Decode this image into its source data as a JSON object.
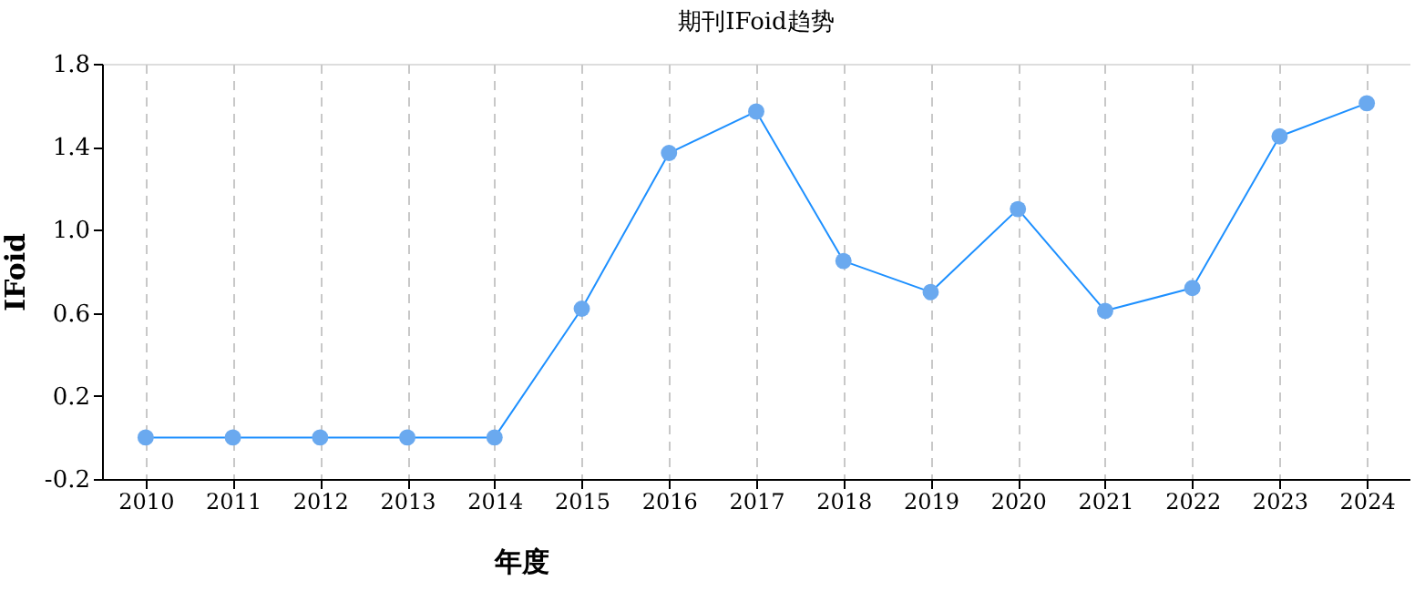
{
  "chart_data": {
    "type": "line",
    "title": "期刊IFoid趋势",
    "xlabel": "年度",
    "ylabel": "IFoid",
    "categories": [
      "2010",
      "2011",
      "2012",
      "2013",
      "2014",
      "2015",
      "2016",
      "2017",
      "2018",
      "2019",
      "2020",
      "2021",
      "2022",
      "2023",
      "2024"
    ],
    "series": [
      {
        "color": "#1e90ff",
        "values": [
          0,
          0,
          0,
          0,
          0,
          0.62,
          1.37,
          1.57,
          0.85,
          0.7,
          1.1,
          0.61,
          0.72,
          1.45,
          1.61
        ]
      }
    ],
    "ylim": [
      -0.2,
      1.8
    ],
    "yticks": [
      -0.2,
      0.2,
      0.6,
      {
        "value": 1,
        "label": "1.0"
      },
      1.4,
      1.8
    ],
    "grid": "x",
    "marker": "circle",
    "line_style": "solid"
  }
}
